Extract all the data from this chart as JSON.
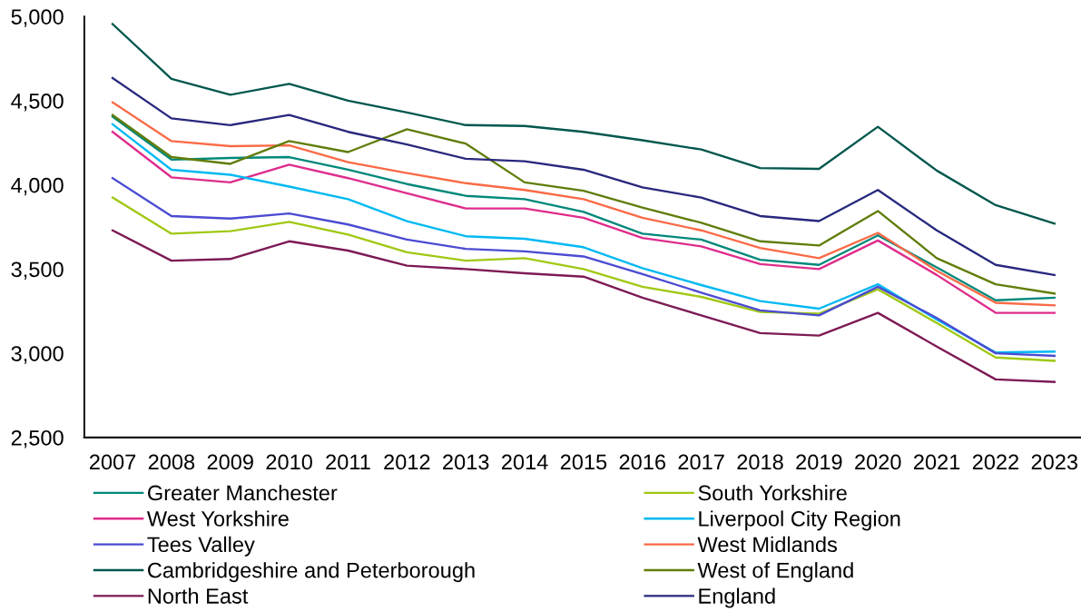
{
  "chart_data": {
    "type": "line",
    "categories": [
      "2007",
      "2008",
      "2009",
      "2010",
      "2011",
      "2012",
      "2013",
      "2014",
      "2015",
      "2016",
      "2017",
      "2018",
      "2019",
      "2020",
      "2021",
      "2022",
      "2023"
    ],
    "ylim": [
      2500,
      5000
    ],
    "yticks": [
      {
        "value": 2500,
        "label": "2,500"
      },
      {
        "value": 3000,
        "label": "3,000"
      },
      {
        "value": 3500,
        "label": "3,500"
      },
      {
        "value": 4000,
        "label": "4,000"
      },
      {
        "value": 4500,
        "label": "4,500"
      },
      {
        "value": 5000,
        "label": "5,000"
      }
    ],
    "legend": "bottom",
    "line_style": "solid",
    "series": [
      {
        "name": "Greater Manchester",
        "color": "#00887a",
        "values": [
          4405,
          4150,
          4160,
          4165,
          4090,
          4005,
          3935,
          3915,
          3840,
          3710,
          3675,
          3555,
          3525,
          3700,
          3510,
          3315,
          3330
        ]
      },
      {
        "name": "South Yorkshire",
        "color": "#a0c814",
        "values": [
          3925,
          3710,
          3725,
          3780,
          3705,
          3600,
          3550,
          3565,
          3500,
          3395,
          3335,
          3245,
          3235,
          3380,
          3180,
          2975,
          2955
        ]
      },
      {
        "name": "West Yorkshire",
        "color": "#de2d8c",
        "values": [
          4315,
          4045,
          4015,
          4120,
          4040,
          3950,
          3860,
          3860,
          3805,
          3685,
          3635,
          3530,
          3500,
          3670,
          3465,
          3240,
          3240
        ]
      },
      {
        "name": "Liverpool City Region",
        "color": "#00b9f2",
        "values": [
          4360,
          4090,
          4060,
          3990,
          3915,
          3785,
          3695,
          3680,
          3630,
          3505,
          3405,
          3310,
          3265,
          3410,
          3200,
          3005,
          3010
        ]
      },
      {
        "name": "Tees Valley",
        "color": "#4b4bd2",
        "values": [
          4040,
          3815,
          3800,
          3830,
          3765,
          3675,
          3620,
          3605,
          3575,
          3470,
          3360,
          3255,
          3225,
          3395,
          3210,
          3000,
          2985
        ]
      },
      {
        "name": "West Midlands",
        "color": "#fa6a46",
        "values": [
          4490,
          4260,
          4230,
          4235,
          4135,
          4070,
          4010,
          3970,
          3915,
          3805,
          3730,
          3625,
          3565,
          3715,
          3490,
          3300,
          3285
        ]
      },
      {
        "name": "Cambridgeshire and Peterborough",
        "color": "#00574d",
        "values": [
          4955,
          4630,
          4535,
          4600,
          4500,
          4430,
          4355,
          4350,
          4315,
          4265,
          4210,
          4100,
          4095,
          4345,
          4085,
          3880,
          3770
        ]
      },
      {
        "name": "West of England",
        "color": "#607d0a",
        "values": [
          4415,
          4165,
          4125,
          4260,
          4195,
          4330,
          4245,
          4015,
          3965,
          3865,
          3775,
          3665,
          3640,
          3845,
          3565,
          3410,
          3355
        ]
      },
      {
        "name": "North East",
        "color": "#7d1a55",
        "values": [
          3730,
          3550,
          3560,
          3665,
          3610,
          3520,
          3500,
          3475,
          3455,
          3330,
          3225,
          3120,
          3105,
          3240,
          3040,
          2845,
          2830
        ]
      },
      {
        "name": "England",
        "color": "#28287e",
        "values": [
          4635,
          4395,
          4355,
          4415,
          4315,
          4240,
          4155,
          4140,
          4090,
          3985,
          3925,
          3815,
          3785,
          3970,
          3730,
          3525,
          3465
        ]
      }
    ]
  }
}
